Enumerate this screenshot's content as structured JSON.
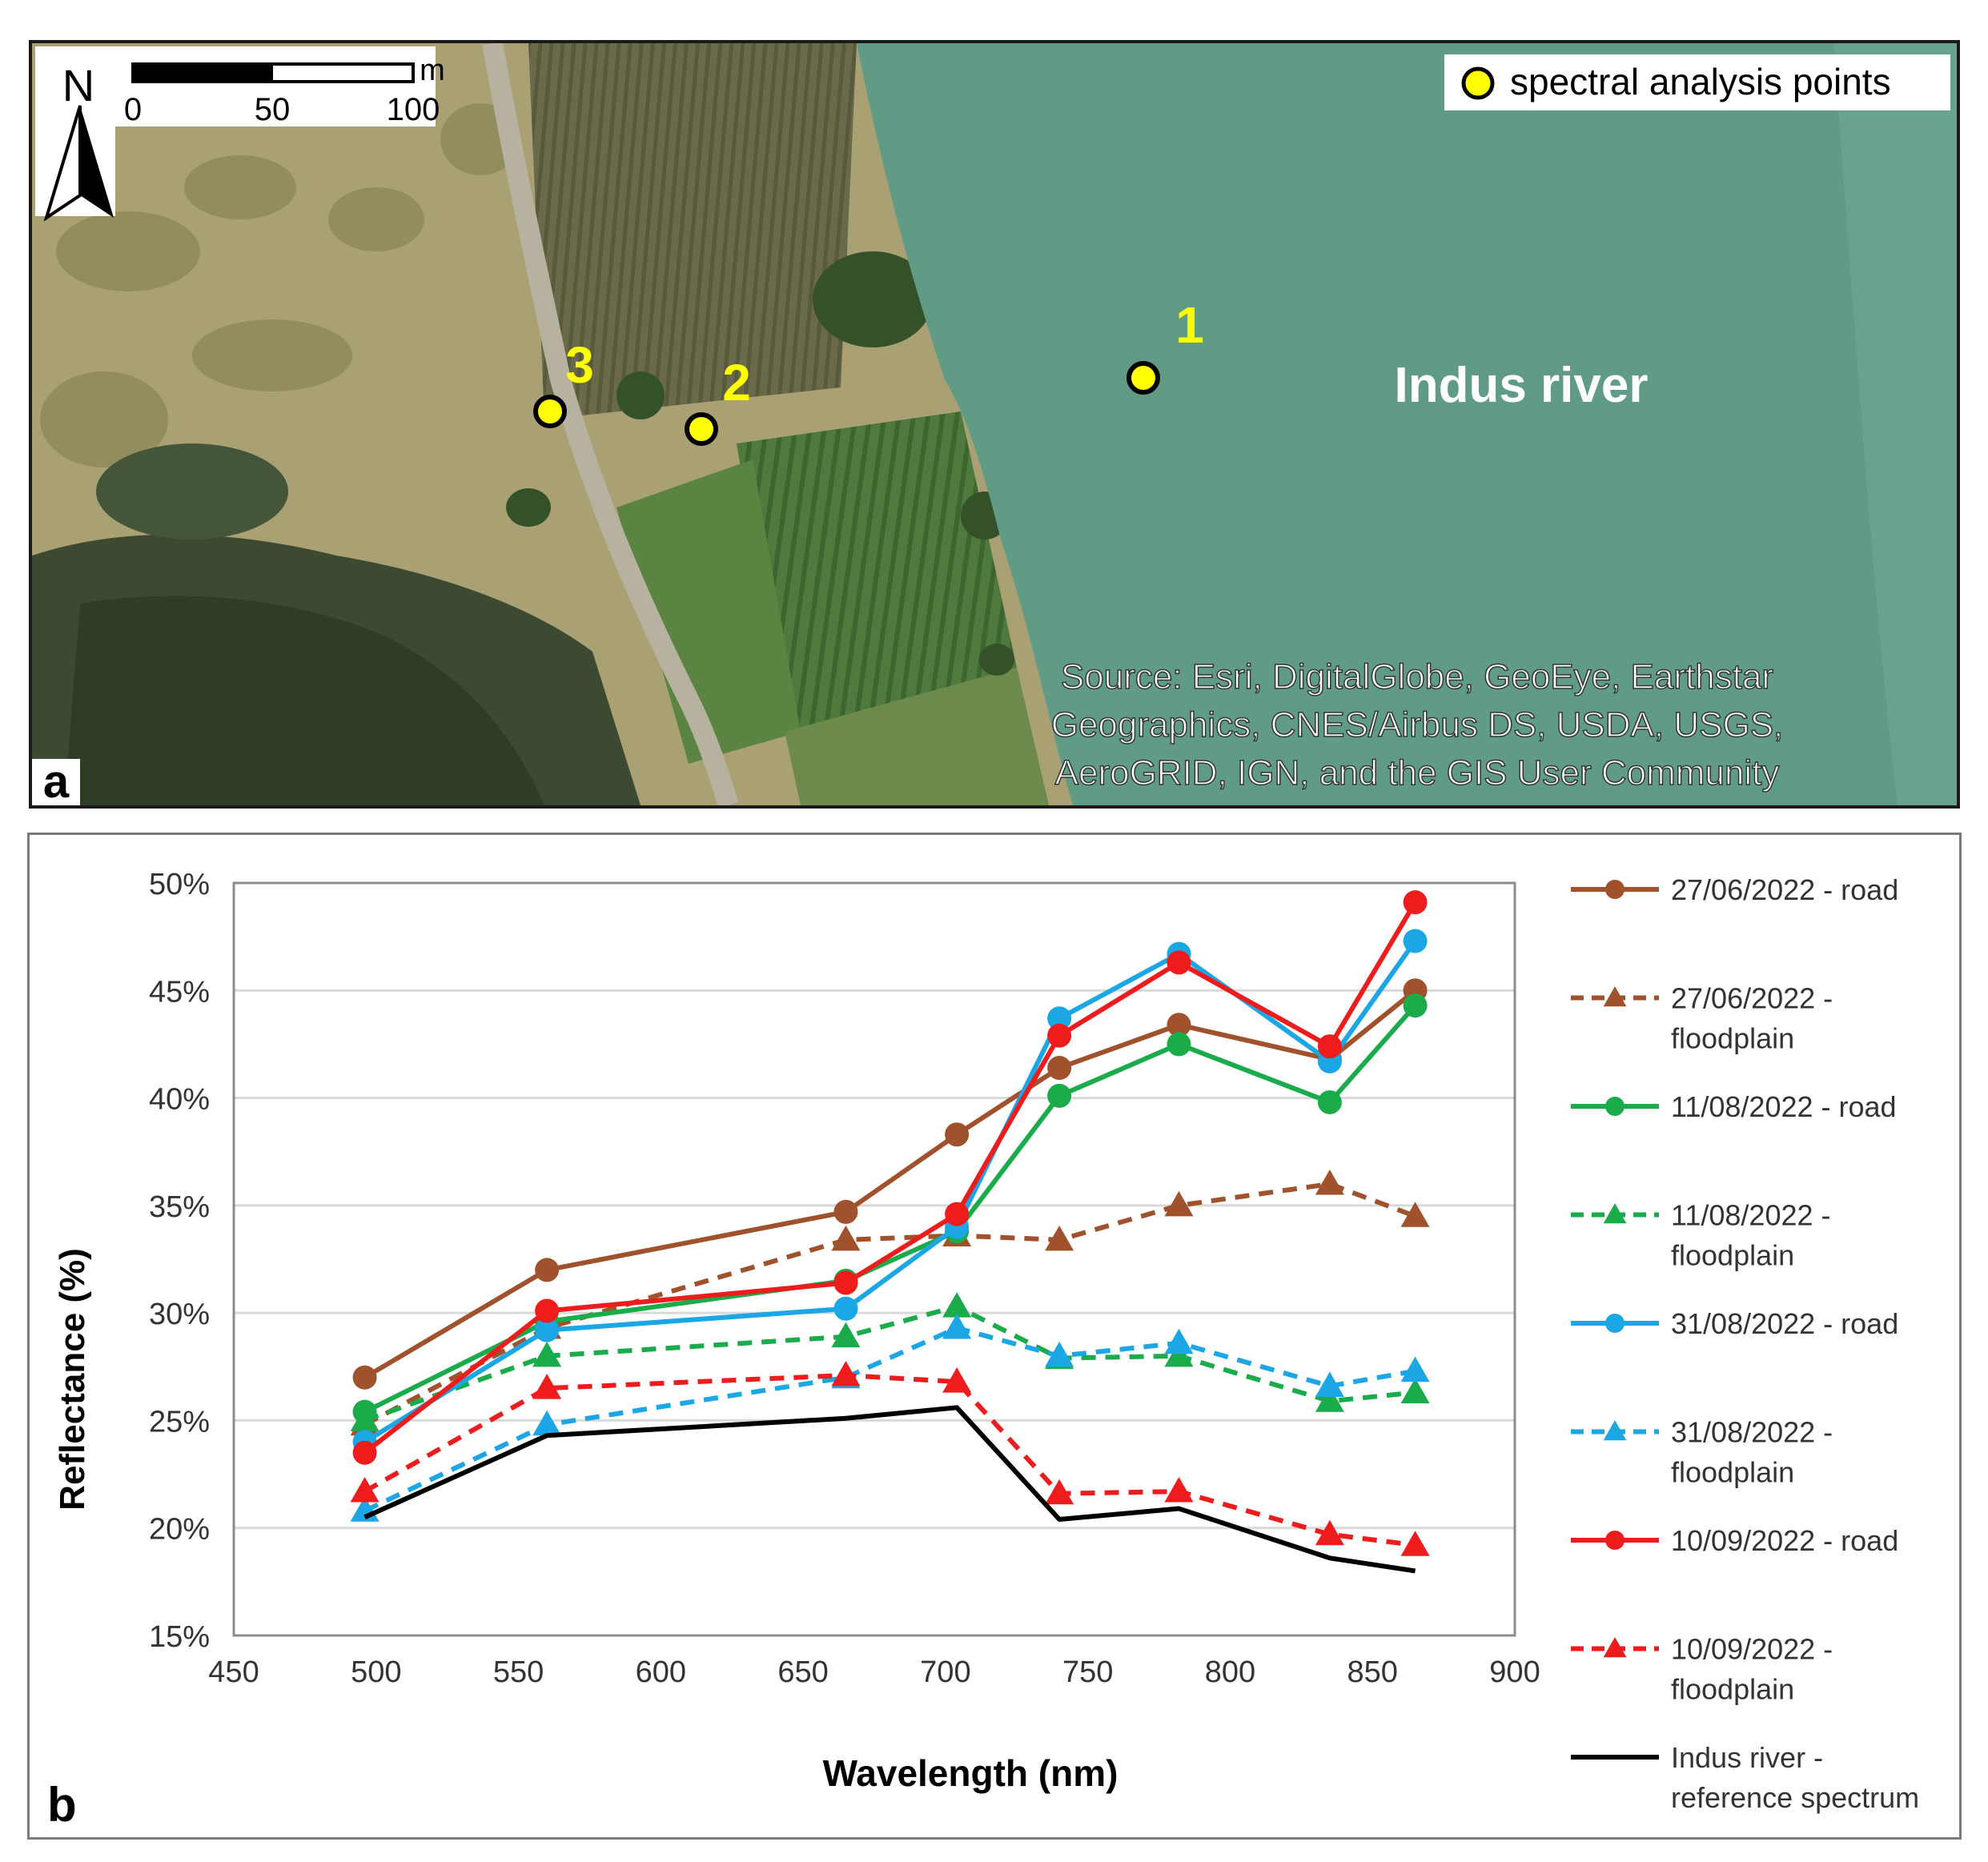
{
  "map": {
    "panel_label": "a",
    "north_label": "N",
    "scale": {
      "unit": "m",
      "ticks": [
        "0",
        "50",
        "100"
      ]
    },
    "legend_label": "spectral analysis points",
    "points": [
      {
        "label": "1",
        "kind": "river"
      },
      {
        "label": "2",
        "kind": "floodplain"
      },
      {
        "label": "3",
        "kind": "road"
      }
    ],
    "river_label": "Indus river",
    "source_lines": [
      "Source: Esri, DigitalGlobe, GeoEye, Earthstar",
      "Geographics, CNES/Airbus DS, USDA, USGS,",
      "AeroGRID, IGN, and the GIS User Community"
    ],
    "colors": {
      "water": "#5f9b85",
      "land": "#a59a6e",
      "vegetation": "#3f6a36",
      "point": "#ffff00"
    }
  },
  "chart": {
    "panel_label": "b"
  },
  "chart_data": {
    "type": "line",
    "xlabel": "Wavelength (nm)",
    "ylabel": "Reflectance (%)",
    "xlim": [
      450,
      900
    ],
    "ylim": [
      15,
      50
    ],
    "xticks": [
      "450",
      "500",
      "550",
      "600",
      "650",
      "700",
      "750",
      "800",
      "850",
      "900"
    ],
    "yticks": [
      "15%",
      "20%",
      "25%",
      "30%",
      "35%",
      "40%",
      "45%",
      "50%"
    ],
    "grid": "horizontal",
    "legend_position": "right",
    "x": [
      496,
      560,
      665,
      704,
      740,
      782,
      835,
      865
    ],
    "series": [
      {
        "name": "27/06/2022 - road",
        "legend_lines": [
          "27/06/2022 - road"
        ],
        "color": "#a0522d",
        "dash": "solid",
        "marker": "circle",
        "values": [
          27.0,
          32.0,
          34.7,
          38.3,
          41.4,
          43.4,
          41.8,
          45.0
        ]
      },
      {
        "name": "27/06/2022 - floodplain",
        "legend_lines": [
          "27/06/2022 -",
          "floodplain"
        ],
        "color": "#a0522d",
        "dash": "dashed",
        "marker": "triangle",
        "values": [
          24.8,
          29.3,
          33.4,
          33.6,
          33.4,
          35.0,
          36.0,
          34.5
        ]
      },
      {
        "name": "11/08/2022 - road",
        "legend_lines": [
          "11/08/2022 - road"
        ],
        "color": "#1aab4b",
        "dash": "solid",
        "marker": "circle",
        "values": [
          25.4,
          29.6,
          31.5,
          33.8,
          40.1,
          42.5,
          39.8,
          44.3
        ]
      },
      {
        "name": "11/08/2022 - floodplain",
        "legend_lines": [
          "11/08/2022 -",
          "floodplain"
        ],
        "color": "#1aab4b",
        "dash": "dashed",
        "marker": "triangle",
        "values": [
          25.0,
          28.0,
          28.9,
          30.3,
          27.9,
          28.0,
          25.9,
          26.3
        ]
      },
      {
        "name": "31/08/2022 - road",
        "legend_lines": [
          "31/08/2022 - road"
        ],
        "color": "#1ba6e6",
        "dash": "solid",
        "marker": "circle",
        "values": [
          24.0,
          29.2,
          30.2,
          34.0,
          43.7,
          46.7,
          41.7,
          47.3
        ]
      },
      {
        "name": "31/08/2022 - floodplain",
        "legend_lines": [
          "31/08/2022 -",
          "floodplain"
        ],
        "color": "#1ba6e6",
        "dash": "dashed",
        "marker": "triangle",
        "values": [
          20.8,
          24.8,
          27.0,
          29.3,
          28.0,
          28.6,
          26.6,
          27.3
        ]
      },
      {
        "name": "10/09/2022 - road",
        "legend_lines": [
          "10/09/2022 - road"
        ],
        "color": "#ee1c1c",
        "dash": "solid",
        "marker": "circle",
        "values": [
          23.5,
          30.1,
          31.4,
          34.6,
          42.9,
          46.3,
          42.4,
          49.1
        ]
      },
      {
        "name": "10/09/2022 - floodplain",
        "legend_lines": [
          "10/09/2022 -",
          "floodplain"
        ],
        "color": "#ee1c1c",
        "dash": "dashed",
        "marker": "triangle",
        "values": [
          21.7,
          26.5,
          27.1,
          26.8,
          21.6,
          21.7,
          19.7,
          19.2
        ]
      },
      {
        "name": "Indus river - reference spectrum",
        "legend_lines": [
          "Indus river -",
          "reference spectrum"
        ],
        "color": "#000000",
        "dash": "solid",
        "marker": "none",
        "values": [
          20.5,
          24.3,
          25.1,
          25.6,
          20.4,
          20.9,
          18.6,
          18.0
        ]
      }
    ]
  }
}
